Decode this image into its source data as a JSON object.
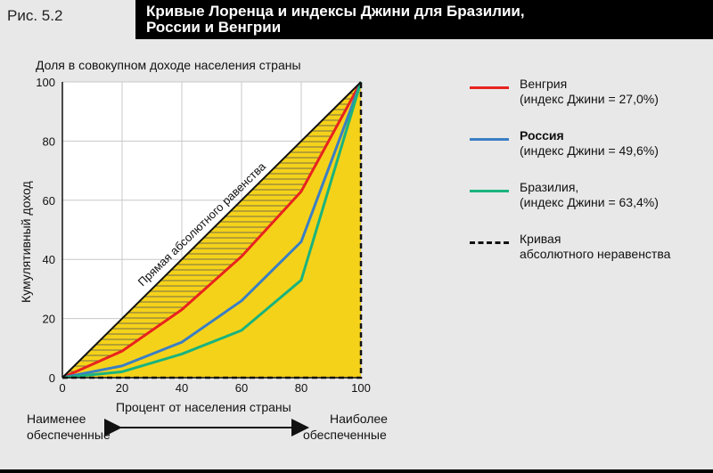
{
  "figure_label": "Рис. 5.2",
  "title_line1": "Кривые Лоренца и индексы Джини для Бразилии,",
  "title_line2": "России и Венгрии",
  "chart_data": {
    "type": "line",
    "title": "Кривые Лоренца и индексы Джини для Бразилии, России и Венгрии",
    "top_label": "Доля в совокупном доходе населения страны",
    "ylabel": "Кумулятивный доход",
    "xlabel": "Процент от населения страны",
    "x": [
      0,
      20,
      40,
      60,
      80,
      100
    ],
    "xlim": [
      0,
      100
    ],
    "ylim": [
      0,
      100
    ],
    "x_ticks": [
      "0",
      "20",
      "40",
      "60",
      "80",
      "100"
    ],
    "y_ticks": [
      "0",
      "20",
      "40",
      "60",
      "80",
      "100"
    ],
    "series": [
      {
        "name": "Венгрия",
        "note": "(индекс Джини = 27,0%)",
        "color": "#e8231e",
        "values": [
          0,
          9,
          23,
          41,
          63,
          100
        ]
      },
      {
        "name": "Россия",
        "note": "(индекс Джини = 49,6%)",
        "color": "#3a7fc4",
        "values": [
          0,
          4,
          12,
          26,
          46,
          100
        ]
      },
      {
        "name": "Бразилия,",
        "note": "(индекс Джини = 63,4%)",
        "color": "#1ab37e",
        "values": [
          0,
          2,
          8,
          16,
          33,
          100
        ]
      }
    ],
    "equality_label": "Прямая абсолютного равенства",
    "inequality_legend": [
      "Кривая",
      "абсолютного неравенства"
    ],
    "left_arrow_label": [
      "Наименее",
      "обеспеченные"
    ],
    "right_arrow_label": [
      "Наиболее",
      "обеспеченные"
    ],
    "fill_color": "#f5d21a"
  }
}
